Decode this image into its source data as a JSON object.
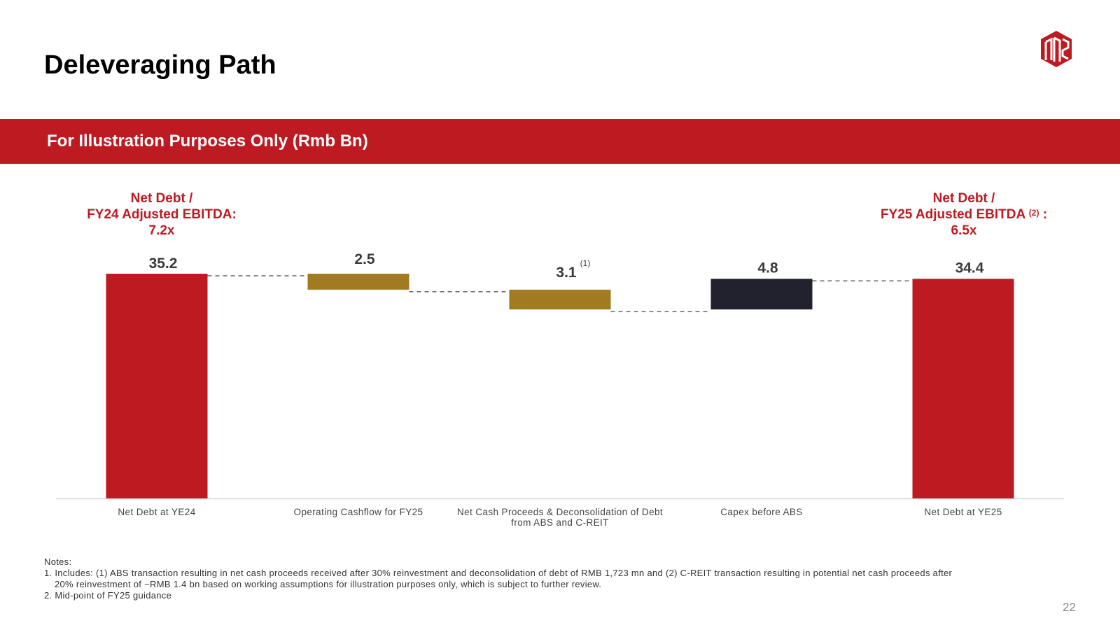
{
  "title": "Deleveraging Path",
  "banner": "For Illustration Purposes Only (Rmb Bn)",
  "ratio_left": {
    "line1": "Net Debt /",
    "line2": "FY24 Adjusted EBITDA:",
    "line3": "7.2x"
  },
  "ratio_right": {
    "line1": "Net Debt /",
    "line2": "FY25 Adjusted EBITDA",
    "sup": "(2)",
    "suffix": " :",
    "line3": "6.5x"
  },
  "colors": {
    "red": "#BE1A22",
    "gold": "#A27A20",
    "dark": "#22222E"
  },
  "chart_data": {
    "type": "bar",
    "subtype": "waterfall",
    "categories": [
      [
        "Net Debt at YE24"
      ],
      [
        "Operating Cashflow for FY25"
      ],
      [
        "Net Cash Proceeds & Deconsolidation of Debt",
        "from ABS and C-REIT"
      ],
      [
        "Capex before ABS"
      ],
      [
        "Net Debt at YE25"
      ]
    ],
    "values": [
      35.2,
      2.5,
      3.1,
      4.8,
      34.4
    ],
    "labels": [
      "35.2",
      "2.5",
      "3.1",
      "4.8",
      "34.4"
    ],
    "footnote_marks": [
      "",
      "",
      "(1)",
      "",
      ""
    ],
    "bar_kind": [
      "total",
      "decrease",
      "decrease",
      "increase",
      "total"
    ],
    "ylim": [
      0,
      37
    ]
  },
  "notes": {
    "heading": "Notes:",
    "n1a": "1. Includes: (1) ABS transaction resulting in net cash proceeds received after 30% reinvestment and deconsolidation of debt of RMB 1,723 mn and (2) C-REIT transaction resulting in potential net cash proceeds after",
    "n1b": "20% reinvestment of ~RMB 1.4 bn based on working assumptions for illustration purposes only, which is subject to further review.",
    "n2": "2. Mid-point of FY25 guidance"
  },
  "page_number": "22"
}
